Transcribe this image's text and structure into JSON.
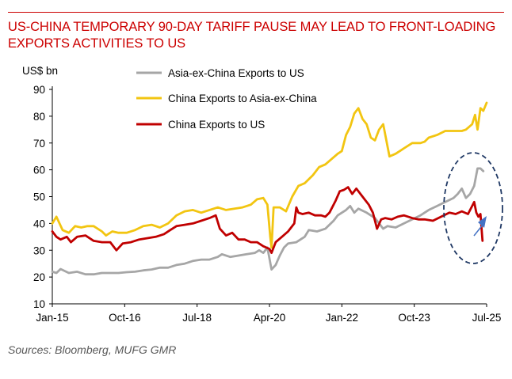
{
  "title": "US-CHINA TEMPORARY 90-DAY TARIFF PAUSE MAY LEAD TO FRONT-LOADING EXPORTS ACTIVITIES TO US",
  "source": "Sources:  Bloomberg, MUFG GMR",
  "chart_data": {
    "type": "line",
    "title": "US-CHINA TEMPORARY 90-DAY TARIFF PAUSE MAY LEAD TO FRONT-LOADING EXPORTS ACTIVITIES TO US",
    "ylabel": "US$ bn",
    "xlabel": "",
    "ylim": [
      10,
      90
    ],
    "yticks": [
      10,
      20,
      30,
      40,
      50,
      60,
      70,
      80,
      90
    ],
    "xlim": [
      2015.0,
      2025.5
    ],
    "xticks": [
      {
        "label": "Jan-15",
        "x": 2015.0
      },
      {
        "label": "Oct-16",
        "x": 2016.75
      },
      {
        "label": "Jul-18",
        "x": 2018.5
      },
      {
        "label": "Apr-20",
        "x": 2020.25
      },
      {
        "label": "Jan-22",
        "x": 2022.0
      },
      {
        "label": "Oct-23",
        "x": 2023.75
      },
      {
        "label": "Jul-25",
        "x": 2025.5
      }
    ],
    "legend_position": "top-center",
    "series": [
      {
        "name": "Asia-ex-China Exports to US",
        "color": "#a6a6a6",
        "points": [
          [
            2015.0,
            22
          ],
          [
            2015.1,
            21.5
          ],
          [
            2015.2,
            23
          ],
          [
            2015.4,
            21.5
          ],
          [
            2015.6,
            22
          ],
          [
            2015.8,
            21
          ],
          [
            2016.0,
            21
          ],
          [
            2016.2,
            21.5
          ],
          [
            2016.4,
            21.5
          ],
          [
            2016.6,
            21.5
          ],
          [
            2016.8,
            21.8
          ],
          [
            2017.0,
            22
          ],
          [
            2017.2,
            22.5
          ],
          [
            2017.4,
            22.8
          ],
          [
            2017.6,
            23.5
          ],
          [
            2017.8,
            23.5
          ],
          [
            2018.0,
            24.5
          ],
          [
            2018.2,
            25
          ],
          [
            2018.4,
            26
          ],
          [
            2018.6,
            26.5
          ],
          [
            2018.8,
            26.5
          ],
          [
            2019.0,
            27.5
          ],
          [
            2019.1,
            28.5
          ],
          [
            2019.3,
            27.5
          ],
          [
            2019.5,
            28
          ],
          [
            2019.7,
            28.5
          ],
          [
            2019.9,
            29
          ],
          [
            2020.0,
            30
          ],
          [
            2020.1,
            29
          ],
          [
            2020.2,
            31
          ],
          [
            2020.3,
            22.8
          ],
          [
            2020.4,
            24.5
          ],
          [
            2020.5,
            28
          ],
          [
            2020.6,
            31
          ],
          [
            2020.7,
            32.5
          ],
          [
            2020.9,
            33
          ],
          [
            2021.1,
            35
          ],
          [
            2021.2,
            37.5
          ],
          [
            2021.4,
            37
          ],
          [
            2021.6,
            38
          ],
          [
            2021.8,
            41
          ],
          [
            2021.9,
            43
          ],
          [
            2022.0,
            44
          ],
          [
            2022.1,
            45
          ],
          [
            2022.2,
            46.5
          ],
          [
            2022.3,
            44
          ],
          [
            2022.4,
            45.5
          ],
          [
            2022.6,
            44
          ],
          [
            2022.8,
            42
          ],
          [
            2022.9,
            40
          ],
          [
            2023.0,
            38
          ],
          [
            2023.1,
            39
          ],
          [
            2023.3,
            38.5
          ],
          [
            2023.5,
            40
          ],
          [
            2023.7,
            41.5
          ],
          [
            2023.9,
            43
          ],
          [
            2024.1,
            45
          ],
          [
            2024.3,
            46.5
          ],
          [
            2024.5,
            48
          ],
          [
            2024.7,
            49.5
          ],
          [
            2024.8,
            51
          ],
          [
            2024.9,
            53
          ],
          [
            2025.0,
            49.5
          ],
          [
            2025.1,
            51
          ],
          [
            2025.2,
            54
          ],
          [
            2025.28,
            60.5
          ],
          [
            2025.35,
            60.5
          ],
          [
            2025.42,
            59.5
          ]
        ]
      },
      {
        "name": "China Exports to Asia-ex-China",
        "color": "#f2c511",
        "points": [
          [
            2015.0,
            40
          ],
          [
            2015.1,
            42.5
          ],
          [
            2015.25,
            37.5
          ],
          [
            2015.4,
            36.5
          ],
          [
            2015.55,
            39
          ],
          [
            2015.7,
            38.5
          ],
          [
            2015.85,
            39
          ],
          [
            2016.0,
            39
          ],
          [
            2016.2,
            37
          ],
          [
            2016.3,
            35.5
          ],
          [
            2016.45,
            37
          ],
          [
            2016.6,
            36.5
          ],
          [
            2016.8,
            36.5
          ],
          [
            2017.0,
            37.5
          ],
          [
            2017.2,
            39
          ],
          [
            2017.4,
            39.5
          ],
          [
            2017.6,
            38.5
          ],
          [
            2017.8,
            40
          ],
          [
            2018.0,
            43
          ],
          [
            2018.2,
            44.5
          ],
          [
            2018.4,
            45
          ],
          [
            2018.6,
            44
          ],
          [
            2018.8,
            45
          ],
          [
            2019.0,
            46
          ],
          [
            2019.2,
            45
          ],
          [
            2019.4,
            45.5
          ],
          [
            2019.6,
            46
          ],
          [
            2019.8,
            47
          ],
          [
            2019.95,
            49
          ],
          [
            2020.1,
            49.5
          ],
          [
            2020.2,
            47
          ],
          [
            2020.27,
            35
          ],
          [
            2020.3,
            31
          ],
          [
            2020.35,
            46
          ],
          [
            2020.5,
            46
          ],
          [
            2020.65,
            44.5
          ],
          [
            2020.8,
            50
          ],
          [
            2020.95,
            54
          ],
          [
            2021.1,
            55
          ],
          [
            2021.3,
            58
          ],
          [
            2021.45,
            61
          ],
          [
            2021.6,
            62
          ],
          [
            2021.75,
            64
          ],
          [
            2021.9,
            66
          ],
          [
            2022.0,
            67
          ],
          [
            2022.1,
            73
          ],
          [
            2022.2,
            76
          ],
          [
            2022.3,
            81
          ],
          [
            2022.4,
            83
          ],
          [
            2022.5,
            79
          ],
          [
            2022.6,
            77
          ],
          [
            2022.7,
            72
          ],
          [
            2022.8,
            71
          ],
          [
            2022.9,
            75
          ],
          [
            2023.0,
            77
          ],
          [
            2023.15,
            65
          ],
          [
            2023.3,
            66
          ],
          [
            2023.5,
            68
          ],
          [
            2023.7,
            70
          ],
          [
            2023.9,
            70
          ],
          [
            2024.0,
            70.5
          ],
          [
            2024.1,
            72
          ],
          [
            2024.3,
            73
          ],
          [
            2024.5,
            74.5
          ],
          [
            2024.7,
            74.5
          ],
          [
            2024.9,
            74.5
          ],
          [
            2025.0,
            75
          ],
          [
            2025.15,
            77
          ],
          [
            2025.22,
            80.5
          ],
          [
            2025.28,
            75
          ],
          [
            2025.35,
            83
          ],
          [
            2025.42,
            82
          ],
          [
            2025.5,
            85
          ]
        ]
      },
      {
        "name": "China Exports to US",
        "color": "#c00000",
        "points": [
          [
            2015.0,
            37
          ],
          [
            2015.1,
            35
          ],
          [
            2015.2,
            34
          ],
          [
            2015.35,
            35
          ],
          [
            2015.45,
            33
          ],
          [
            2015.6,
            35
          ],
          [
            2015.8,
            35.5
          ],
          [
            2016.0,
            33.5
          ],
          [
            2016.2,
            33
          ],
          [
            2016.4,
            33
          ],
          [
            2016.55,
            30
          ],
          [
            2016.7,
            32.5
          ],
          [
            2016.9,
            33
          ],
          [
            2017.1,
            34
          ],
          [
            2017.3,
            34.5
          ],
          [
            2017.5,
            35
          ],
          [
            2017.7,
            36
          ],
          [
            2017.85,
            37.5
          ],
          [
            2018.0,
            39
          ],
          [
            2018.2,
            39.5
          ],
          [
            2018.4,
            40
          ],
          [
            2018.6,
            41
          ],
          [
            2018.8,
            42
          ],
          [
            2018.95,
            43
          ],
          [
            2019.05,
            38
          ],
          [
            2019.2,
            35.5
          ],
          [
            2019.35,
            36.5
          ],
          [
            2019.5,
            34
          ],
          [
            2019.65,
            34
          ],
          [
            2019.8,
            33
          ],
          [
            2019.95,
            33
          ],
          [
            2020.1,
            31.5
          ],
          [
            2020.25,
            30.5
          ],
          [
            2020.3,
            29
          ],
          [
            2020.4,
            33
          ],
          [
            2020.55,
            35
          ],
          [
            2020.7,
            37
          ],
          [
            2020.85,
            40
          ],
          [
            2020.9,
            46
          ],
          [
            2020.95,
            44
          ],
          [
            2021.05,
            43.5
          ],
          [
            2021.2,
            44
          ],
          [
            2021.35,
            43
          ],
          [
            2021.5,
            43
          ],
          [
            2021.6,
            42.5
          ],
          [
            2021.7,
            44
          ],
          [
            2021.85,
            48.5
          ],
          [
            2021.95,
            52
          ],
          [
            2022.05,
            52.5
          ],
          [
            2022.15,
            53.5
          ],
          [
            2022.25,
            51
          ],
          [
            2022.35,
            53
          ],
          [
            2022.45,
            51
          ],
          [
            2022.55,
            49
          ],
          [
            2022.65,
            47
          ],
          [
            2022.75,
            44
          ],
          [
            2022.85,
            38
          ],
          [
            2022.95,
            41.5
          ],
          [
            2023.05,
            42
          ],
          [
            2023.2,
            41.5
          ],
          [
            2023.35,
            42.5
          ],
          [
            2023.5,
            43
          ],
          [
            2023.7,
            42
          ],
          [
            2023.85,
            41.5
          ],
          [
            2024.0,
            41.5
          ],
          [
            2024.2,
            41
          ],
          [
            2024.4,
            42.5
          ],
          [
            2024.6,
            44
          ],
          [
            2024.75,
            43.5
          ],
          [
            2024.9,
            44.5
          ],
          [
            2025.05,
            43.5
          ],
          [
            2025.15,
            46.5
          ],
          [
            2025.2,
            48
          ],
          [
            2025.25,
            44
          ],
          [
            2025.3,
            42.5
          ],
          [
            2025.35,
            43.5
          ],
          [
            2025.4,
            33.5
          ]
        ]
      }
    ],
    "annotations": [
      {
        "type": "dashed-ellipse",
        "color": "#1f3864",
        "description": "highlight of latest months"
      },
      {
        "type": "arrow",
        "color": "#4472c4",
        "direction": "up-right"
      }
    ]
  }
}
